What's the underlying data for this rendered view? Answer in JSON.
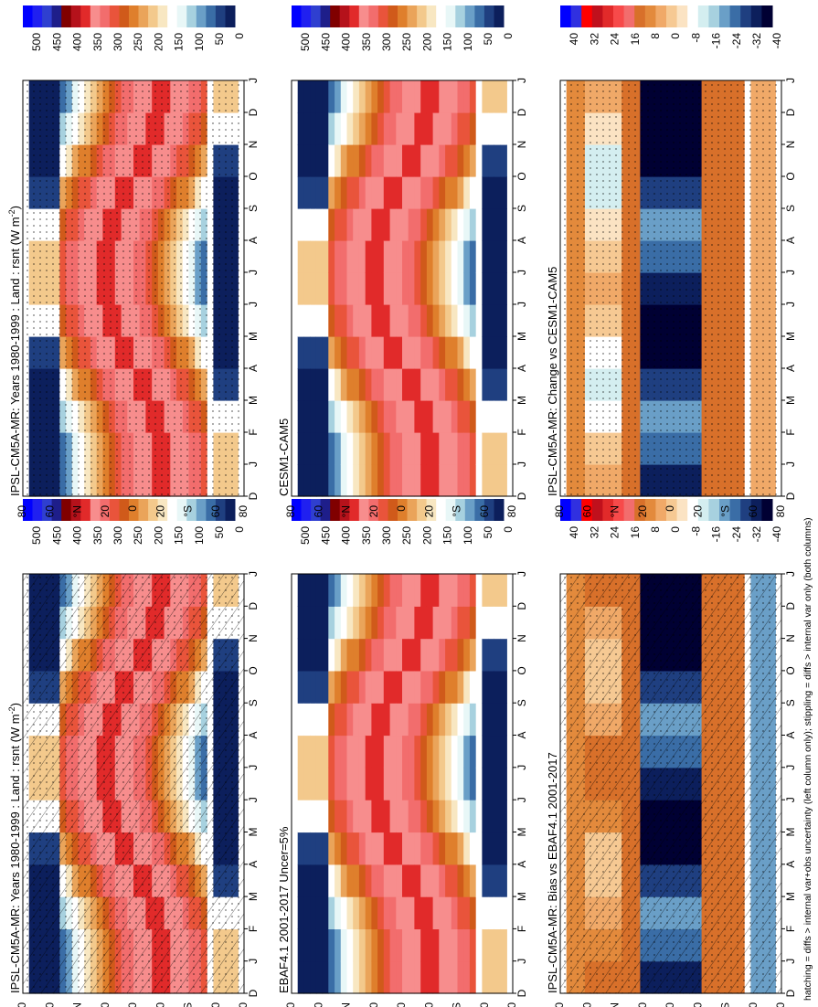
{
  "chart_data": {
    "type": "heatmap",
    "orientation": "rotated-90-clockwise",
    "caption": "hatching = diffs > internal var+obs uncertainty (left column only); stippling = diffs > internal var only (both columns)",
    "x_months": [
      "D",
      "J",
      "F",
      "M",
      "A",
      "M",
      "J",
      "J",
      "A",
      "S",
      "O",
      "N",
      "D",
      "J"
    ],
    "lat_ticks": [
      "80",
      "60",
      "°N",
      "20",
      "0",
      "20",
      "°S",
      "60",
      "80"
    ],
    "panels": [
      {
        "id": "L1",
        "title": "IPSL-CM5A-MR: Years 1980-1999 : Land : rsnt",
        "units": "(W m",
        "units_sup": "-2",
        "units_close": ")",
        "kind": "abs",
        "hatch": true,
        "stipple": true
      },
      {
        "id": "R1",
        "title": "IPSL-CM5A-MR: Years 1980-1999 : Land : rsnt",
        "units": "(W m",
        "units_sup": "-2",
        "units_close": ")",
        "kind": "abs",
        "hatch": false,
        "stipple": true
      },
      {
        "id": "L2",
        "title": "EBAF4.1 2001-2017 Uncer=5%",
        "kind": "abs",
        "hatch": false,
        "stipple": false
      },
      {
        "id": "R2",
        "title": "CESM1-CAM5",
        "kind": "abs",
        "hatch": false,
        "stipple": false
      },
      {
        "id": "L3",
        "title": "IPSL-CM5A-MR: Bias vs EBAF4.1 2001-2017",
        "kind": "diff",
        "hatch": true,
        "stipple": true
      },
      {
        "id": "R3",
        "title": "IPSL-CM5A-MR: Change vs CESM1-CAM5",
        "kind": "diff",
        "hatch": false,
        "stipple": true
      }
    ],
    "colorbar_abs": {
      "labels": [
        "500",
        "450",
        "400",
        "350",
        "300",
        "250",
        "200",
        "150",
        "100",
        "50",
        "0"
      ],
      "colors": [
        "#0c1f5c",
        "#1f3f80",
        "#3a6da6",
        "#6a9fc7",
        "#a7d1df",
        "#e8f7f7",
        "#ffffff",
        "#f8e7c2",
        "#f3c98c",
        "#eaa45a",
        "#df7f2c",
        "#d05a1a",
        "#e9543b",
        "#f26d6d",
        "#f78d8d",
        "#e12a2a",
        "#b5121b",
        "#800000",
        "#1e1e8a",
        "#2f3fd0",
        "#2020f0",
        "#0000ff"
      ]
    },
    "colorbar_diff": {
      "labels": [
        "40",
        "32",
        "24",
        "16",
        "8",
        "0",
        "-8",
        "-16",
        "-24",
        "-32",
        "-40"
      ],
      "colors": [
        "#000033",
        "#0c1f5c",
        "#1f3f80",
        "#3a6da6",
        "#6a9fc7",
        "#a7d1df",
        "#d4eef0",
        "#ffffff",
        "#fbe3c3",
        "#f6c993",
        "#f0a968",
        "#e38a3c",
        "#d8702a",
        "#f26d6d",
        "#f74a4a",
        "#e12a2a",
        "#c0101c",
        "#ff0000",
        "#3030e0",
        "#0000ff"
      ]
    },
    "zonal_land_mean_abs": {
      "lat_deg": [
        85,
        75,
        65,
        55,
        45,
        35,
        25,
        15,
        5,
        -5,
        -15,
        -25,
        -35,
        -45,
        -62,
        -68,
        -75,
        -82
      ],
      "months": [
        "D",
        "J",
        "F",
        "M",
        "A",
        "M",
        "J",
        "J",
        "A",
        "S",
        "O",
        "N",
        "D"
      ],
      "note": "approximate rsnt land values in W m-2, read from colours"
    }
  }
}
